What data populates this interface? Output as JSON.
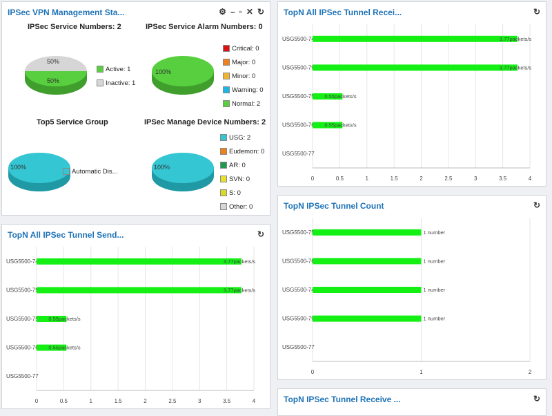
{
  "colors": {
    "title": "#1f73b7",
    "bar": "#14f014",
    "pie_green": "#57cf3e",
    "pie_gray": "#d6d6d6",
    "pie_cyan": "#34c6d3"
  },
  "panel_mgmt": {
    "title": "IPSec VPN Management Sta...",
    "tools": [
      "gear-icon",
      "minimize-icon",
      "restore-icon",
      "close-icon",
      "refresh-icon"
    ],
    "service_numbers": {
      "title": "IPSec Service Numbers: 2",
      "slices": [
        {
          "label": "50%",
          "color": "#d6d6d6"
        },
        {
          "label": "50%",
          "color": "#57cf3e"
        }
      ],
      "legend": [
        {
          "label": "Active: 1",
          "color": "#57cf3e"
        },
        {
          "label": "Inactive: 1",
          "color": "#d6d6d6"
        }
      ]
    },
    "alarm_numbers": {
      "title": "IPSec Service Alarm Numbers: 0",
      "slice_label": "100%",
      "legend": [
        {
          "label": "Critical: 0",
          "color": "#e01010"
        },
        {
          "label": "Major: 0",
          "color": "#f2801a"
        },
        {
          "label": "Minor: 0",
          "color": "#f0b530"
        },
        {
          "label": "Warning: 0",
          "color": "#19b7e8"
        },
        {
          "label": "Normal: 2",
          "color": "#57cf3e"
        }
      ]
    },
    "service_group": {
      "title": "Top5 Service Group",
      "slice_label": "100%",
      "legend": [
        {
          "label": "Automatic Dis...",
          "color": "#34c6d3"
        }
      ]
    },
    "device_numbers": {
      "title": "IPSec Manage Device Numbers: 2",
      "slice_label": "100%",
      "legend": [
        {
          "label": "USG: 2",
          "color": "#34c6d3"
        },
        {
          "label": "Eudemon: 0",
          "color": "#f2801a"
        },
        {
          "label": "AR: 0",
          "color": "#1f9a4a"
        },
        {
          "label": "SVN: 0",
          "color": "#e8e030"
        },
        {
          "label": "S: 0",
          "color": "#d9d92a"
        },
        {
          "label": "Other: 0",
          "color": "#d6d6d6"
        }
      ]
    }
  },
  "panel_receive": {
    "title": "TopN All IPSec Tunnel Recei...",
    "chart_data": {
      "type": "bar",
      "orientation": "horizontal",
      "categories": [
        "USG5500-74",
        "USG5500-79",
        "USG5500-75",
        "USG5500-76",
        "USG5500-77"
      ],
      "values": [
        3.77,
        3.77,
        0.55,
        0.55,
        0
      ],
      "value_labels": [
        "3.77packets/s",
        "3.77packets/s",
        "0.55packets/s",
        "0.55packets/s",
        ""
      ],
      "xlim": [
        0,
        4
      ],
      "ticks": [
        "0",
        "0.5",
        "1",
        "1.5",
        "2",
        "2.5",
        "3",
        "3.5",
        "4"
      ]
    }
  },
  "panel_send": {
    "title": "TopN All IPSec Tunnel Send...",
    "chart_data": {
      "type": "bar",
      "orientation": "horizontal",
      "categories": [
        "USG5500-74",
        "USG5500-79",
        "USG5500-75",
        "USG5500-76",
        "USG5500-77"
      ],
      "values": [
        3.77,
        3.77,
        0.55,
        0.55,
        0
      ],
      "value_labels": [
        "3.77packets/s",
        "3.77packets/s",
        "0.55packets/s",
        "0.55packets/s",
        ""
      ],
      "xlim": [
        0,
        4
      ],
      "ticks": [
        "0",
        "0.5",
        "1",
        "1.5",
        "2",
        "2.5",
        "3",
        "3.5",
        "4"
      ]
    }
  },
  "panel_count": {
    "title": "TopN IPSec Tunnel Count",
    "chart_data": {
      "type": "bar",
      "orientation": "horizontal",
      "categories": [
        "USG5500-75",
        "USG5500-76",
        "USG5500-74",
        "USG5500-79",
        "USG5500-77"
      ],
      "values": [
        1,
        1,
        1,
        1,
        0
      ],
      "value_labels": [
        "1 number",
        "1 number",
        "1 number",
        "1 number",
        ""
      ],
      "xlim": [
        0,
        2
      ],
      "ticks": [
        "0",
        "1",
        "2"
      ]
    }
  },
  "panel_receive2": {
    "title": "TopN IPSec Tunnel Receive ..."
  }
}
